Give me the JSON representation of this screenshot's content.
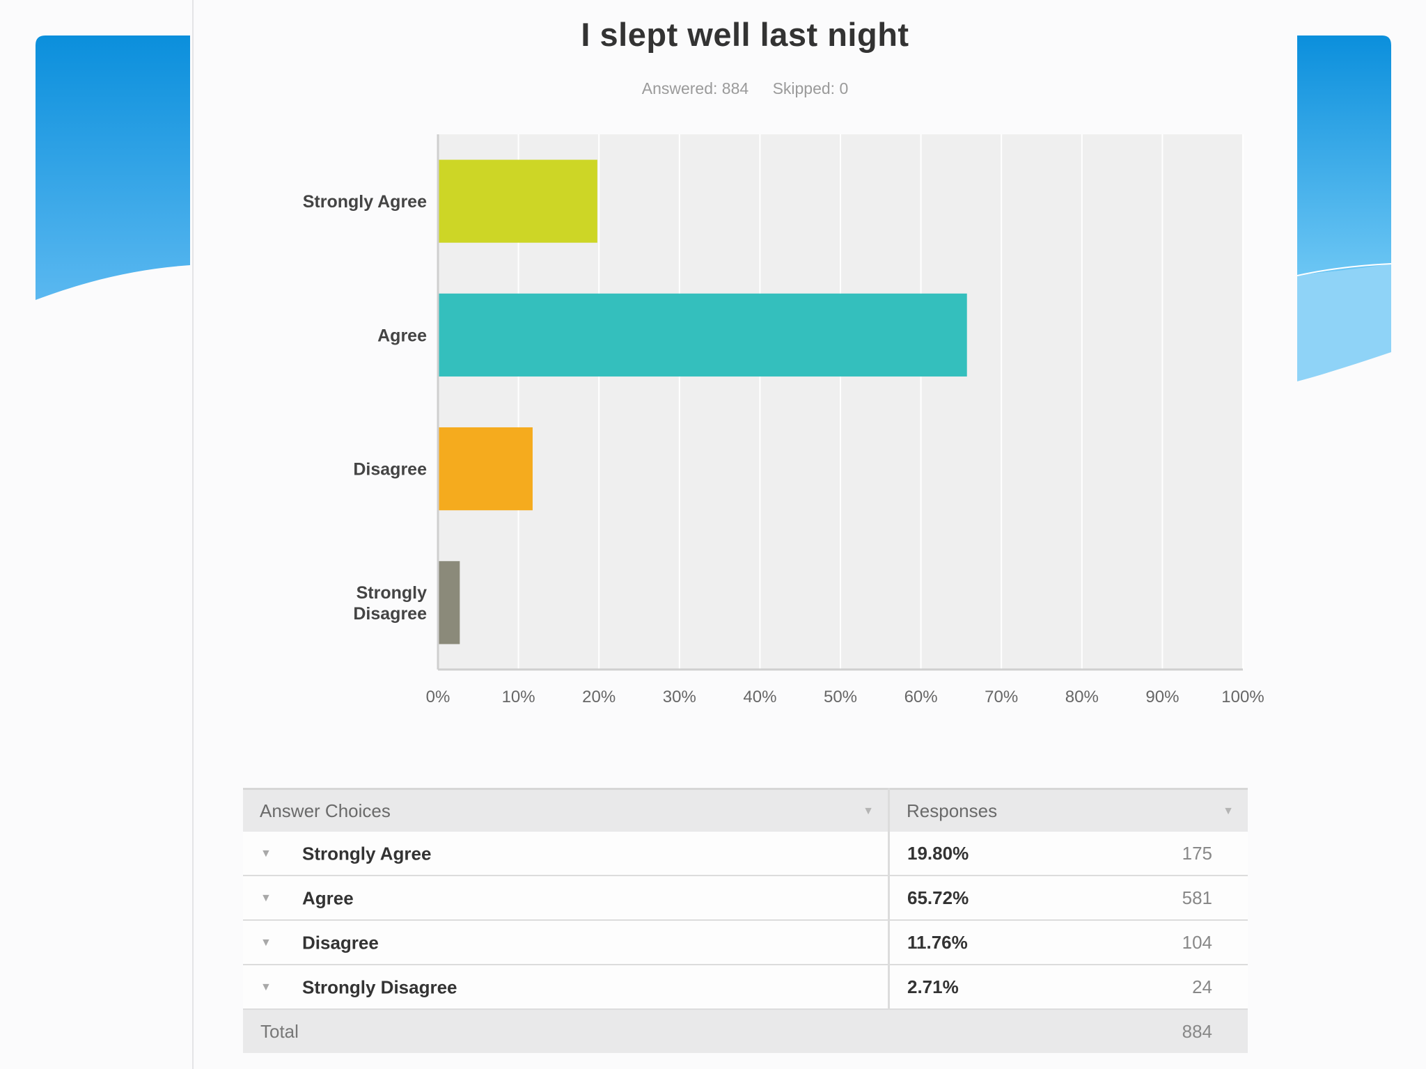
{
  "colors": {
    "accent_blue": "#1193dc",
    "accent_light_blue": "#8fd3f7",
    "chart_background": "#efefef"
  },
  "header": {
    "title": "I slept well last night",
    "answered": "Answered: 884",
    "skipped": "Skipped: 0"
  },
  "chart_data": {
    "type": "bar",
    "orientation": "horizontal",
    "title": "I slept well last night",
    "categories": [
      "Strongly Agree",
      "Agree",
      "Disagree",
      "Strongly Disagree"
    ],
    "values": [
      19.8,
      65.72,
      11.76,
      2.71
    ],
    "bar_colors": [
      "#cdd626",
      "#34bfbd",
      "#f5ab1e",
      "#8b8a7a"
    ],
    "x_ticks": [
      "0%",
      "10%",
      "20%",
      "30%",
      "40%",
      "50%",
      "60%",
      "70%",
      "80%",
      "90%",
      "100%"
    ],
    "xlim": [
      0,
      100
    ],
    "grid": true,
    "xlabel": "",
    "ylabel": ""
  },
  "table": {
    "headers": [
      "Answer Choices",
      "Responses"
    ],
    "rows": [
      {
        "choice": "Strongly Agree",
        "percent": "19.80%",
        "count": "175"
      },
      {
        "choice": "Agree",
        "percent": "65.72%",
        "count": "581"
      },
      {
        "choice": "Disagree",
        "percent": "11.76%",
        "count": "104"
      },
      {
        "choice": "Strongly Disagree",
        "percent": "2.71%",
        "count": "24"
      }
    ],
    "total_label": "Total",
    "total_count": "884"
  }
}
